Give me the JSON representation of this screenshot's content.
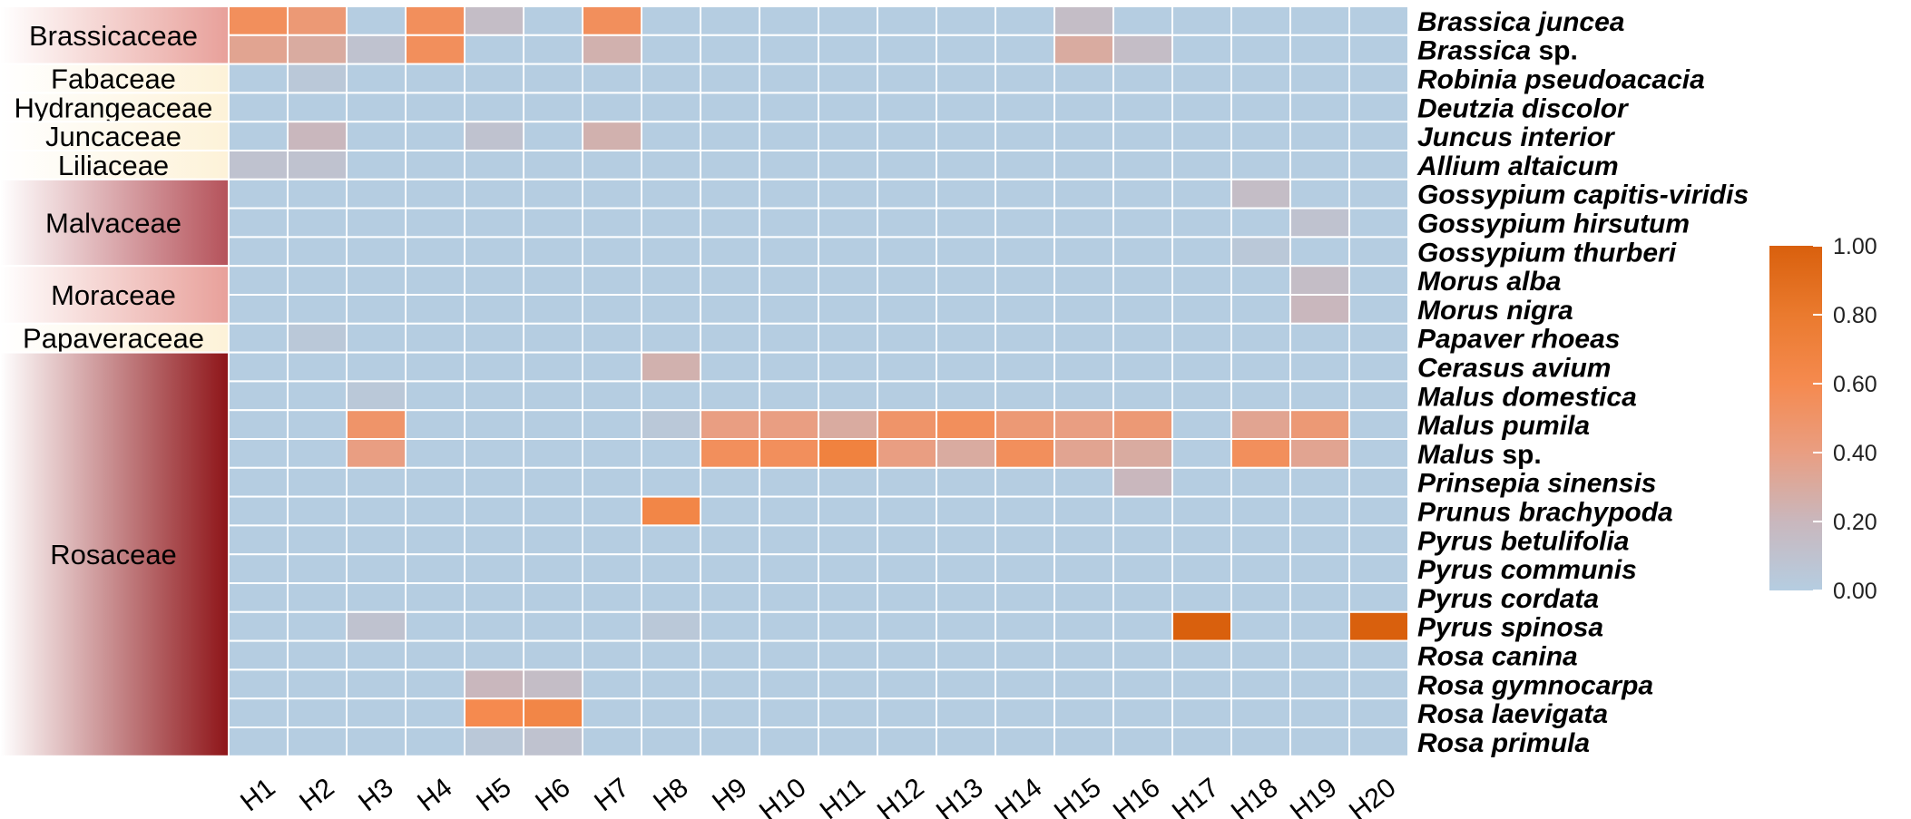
{
  "chart_data": {
    "type": "heatmap",
    "title": "",
    "xlabel": "",
    "ylabel": "",
    "x_categories": [
      "H1",
      "H2",
      "H3",
      "H4",
      "H5",
      "H6",
      "H7",
      "H8",
      "H9",
      "H10",
      "H11",
      "H12",
      "H13",
      "H14",
      "H15",
      "H16",
      "H17",
      "H18",
      "H19",
      "H20"
    ],
    "y_categories": [
      {
        "genus": "Brassica",
        "epithet": "juncea"
      },
      {
        "genus": "Brassica",
        "epithet": "sp."
      },
      {
        "genus": "Robinia",
        "epithet": "pseudoacacia"
      },
      {
        "genus": "Deutzia",
        "epithet": "discolor"
      },
      {
        "genus": "Juncus",
        "epithet": "interior"
      },
      {
        "genus": "Allium",
        "epithet": "altaicum"
      },
      {
        "genus": "Gossypium",
        "epithet": "capitis-viridis"
      },
      {
        "genus": "Gossypium",
        "epithet": "hirsutum"
      },
      {
        "genus": "Gossypium",
        "epithet": "thurberi"
      },
      {
        "genus": "Morus",
        "epithet": "alba"
      },
      {
        "genus": "Morus",
        "epithet": "nigra"
      },
      {
        "genus": "Papaver",
        "epithet": "rhoeas"
      },
      {
        "genus": "Cerasus",
        "epithet": "avium"
      },
      {
        "genus": "Malus",
        "epithet": "domestica"
      },
      {
        "genus": "Malus",
        "epithet": "pumila"
      },
      {
        "genus": "Malus",
        "epithet": "sp."
      },
      {
        "genus": "Prinsepia",
        "epithet": "sinensis"
      },
      {
        "genus": "Prunus",
        "epithet": "brachypoda"
      },
      {
        "genus": "Pyrus",
        "epithet": "betulifolia"
      },
      {
        "genus": "Pyrus",
        "epithet": "communis"
      },
      {
        "genus": "Pyrus",
        "epithet": "cordata"
      },
      {
        "genus": "Pyrus",
        "epithet": "spinosa"
      },
      {
        "genus": "Rosa",
        "epithet": "canina"
      },
      {
        "genus": "Rosa",
        "epithet": "gymnocarpa"
      },
      {
        "genus": "Rosa",
        "epithet": "laevigata"
      },
      {
        "genus": "Rosa",
        "epithet": "primula"
      }
    ],
    "families": [
      {
        "name": "Brassicaceae",
        "start": 0,
        "count": 2,
        "color": "#e8a09a"
      },
      {
        "name": "Fabaceae",
        "start": 2,
        "count": 1,
        "color": "#fdf2d8"
      },
      {
        "name": "Hydrangeaceae",
        "start": 3,
        "count": 1,
        "color": "#fdf2d8"
      },
      {
        "name": "Juncaceae",
        "start": 4,
        "count": 1,
        "color": "#fdf2d8"
      },
      {
        "name": "Liliaceae",
        "start": 5,
        "count": 1,
        "color": "#fdf2d8"
      },
      {
        "name": "Malvaceae",
        "start": 6,
        "count": 3,
        "color": "#b5525a"
      },
      {
        "name": "Moraceae",
        "start": 9,
        "count": 2,
        "color": "#e8a09a"
      },
      {
        "name": "Papaveraceae",
        "start": 11,
        "count": 1,
        "color": "#fdf2d8"
      },
      {
        "name": "Rosaceae",
        "start": 12,
        "count": 14,
        "color": "#8e1418"
      }
    ],
    "values": [
      [
        0.55,
        0.45,
        0,
        0.55,
        0.15,
        0,
        0.55,
        0,
        0,
        0,
        0,
        0,
        0,
        0,
        0.15,
        0,
        0,
        0,
        0,
        0
      ],
      [
        0.35,
        0.3,
        0.1,
        0.55,
        0,
        0,
        0.25,
        0,
        0,
        0,
        0,
        0,
        0,
        0,
        0.3,
        0.15,
        0,
        0,
        0,
        0
      ],
      [
        0,
        0.05,
        0,
        0,
        0,
        0,
        0,
        0,
        0,
        0,
        0,
        0,
        0,
        0,
        0,
        0,
        0,
        0,
        0,
        0
      ],
      [
        0,
        0,
        0,
        0,
        0,
        0,
        0,
        0,
        0,
        0,
        0,
        0,
        0,
        0,
        0,
        0,
        0,
        0,
        0,
        0
      ],
      [
        0,
        0.2,
        0,
        0,
        0.1,
        0,
        0.25,
        0,
        0,
        0,
        0,
        0,
        0,
        0,
        0,
        0,
        0,
        0,
        0,
        0
      ],
      [
        0.1,
        0.1,
        0,
        0,
        0,
        0,
        0,
        0,
        0,
        0,
        0,
        0,
        0,
        0,
        0,
        0,
        0,
        0,
        0,
        0
      ],
      [
        0,
        0,
        0,
        0,
        0,
        0,
        0,
        0,
        0,
        0,
        0,
        0,
        0,
        0,
        0,
        0,
        0,
        0.15,
        0,
        0
      ],
      [
        0,
        0,
        0,
        0,
        0,
        0,
        0,
        0,
        0,
        0,
        0,
        0,
        0,
        0,
        0,
        0,
        0,
        0,
        0.1,
        0
      ],
      [
        0,
        0,
        0,
        0,
        0,
        0,
        0,
        0,
        0,
        0,
        0,
        0,
        0,
        0,
        0,
        0,
        0,
        0.05,
        0,
        0
      ],
      [
        0,
        0,
        0,
        0,
        0,
        0,
        0,
        0,
        0,
        0,
        0,
        0,
        0,
        0,
        0,
        0,
        0,
        0,
        0.15,
        0
      ],
      [
        0,
        0,
        0,
        0,
        0,
        0,
        0,
        0,
        0,
        0,
        0,
        0,
        0,
        0,
        0,
        0,
        0,
        0,
        0.2,
        0
      ],
      [
        0,
        0.05,
        0,
        0,
        0,
        0,
        0,
        0,
        0,
        0,
        0,
        0,
        0,
        0,
        0,
        0,
        0,
        0,
        0,
        0
      ],
      [
        0,
        0,
        0,
        0,
        0,
        0,
        0,
        0.25,
        0,
        0,
        0,
        0,
        0,
        0,
        0,
        0,
        0,
        0,
        0,
        0
      ],
      [
        0,
        0,
        0.05,
        0,
        0,
        0,
        0,
        0,
        0,
        0,
        0,
        0,
        0,
        0,
        0,
        0,
        0,
        0,
        0,
        0
      ],
      [
        0,
        0,
        0.5,
        0,
        0,
        0,
        0,
        0.05,
        0.4,
        0.4,
        0.3,
        0.5,
        0.55,
        0.45,
        0.4,
        0.45,
        0,
        0.35,
        0.45,
        0
      ],
      [
        0,
        0,
        0.4,
        0,
        0,
        0,
        0,
        0,
        0.55,
        0.55,
        0.7,
        0.4,
        0.3,
        0.55,
        0.35,
        0.3,
        0,
        0.55,
        0.35,
        0
      ],
      [
        0,
        0,
        0,
        0,
        0,
        0,
        0,
        0,
        0,
        0,
        0,
        0,
        0,
        0,
        0,
        0.2,
        0,
        0,
        0,
        0
      ],
      [
        0,
        0,
        0,
        0,
        0,
        0,
        0,
        0.65,
        0,
        0,
        0,
        0,
        0,
        0,
        0,
        0,
        0,
        0,
        0,
        0
      ],
      [
        0,
        0,
        0,
        0,
        0,
        0,
        0,
        0,
        0,
        0,
        0,
        0,
        0,
        0,
        0,
        0,
        0,
        0,
        0,
        0
      ],
      [
        0,
        0,
        0,
        0,
        0,
        0,
        0,
        0,
        0,
        0,
        0,
        0,
        0,
        0,
        0,
        0,
        0,
        0,
        0,
        0
      ],
      [
        0,
        0,
        0,
        0,
        0,
        0,
        0,
        0,
        0,
        0,
        0,
        0,
        0,
        0,
        0,
        0,
        0,
        0,
        0,
        0
      ],
      [
        0,
        0,
        0.1,
        0,
        0,
        0,
        0,
        0.05,
        0,
        0,
        0,
        0,
        0,
        0,
        0,
        0,
        1.0,
        0,
        0,
        1.0
      ],
      [
        0,
        0,
        0,
        0,
        0,
        0,
        0,
        0,
        0,
        0,
        0,
        0,
        0,
        0,
        0,
        0,
        0,
        0,
        0,
        0
      ],
      [
        0,
        0,
        0,
        0,
        0.2,
        0.15,
        0,
        0,
        0,
        0,
        0,
        0,
        0,
        0,
        0,
        0,
        0,
        0,
        0,
        0
      ],
      [
        0,
        0,
        0,
        0,
        0.6,
        0.65,
        0,
        0,
        0,
        0,
        0,
        0,
        0,
        0,
        0,
        0,
        0,
        0,
        0,
        0
      ],
      [
        0,
        0,
        0,
        0,
        0.05,
        0.1,
        0,
        0,
        0,
        0,
        0,
        0,
        0,
        0,
        0,
        0,
        0,
        0,
        0,
        0
      ]
    ],
    "colorbar": {
      "min": 0,
      "max": 1,
      "ticks": [
        "0.00",
        "0.20",
        "0.40",
        "0.60",
        "0.80",
        "1.00"
      ],
      "colors": [
        "#b5cde1",
        "#c9b7bd",
        "#e99e82",
        "#f58a4f",
        "#ea7a2e",
        "#d9600d"
      ]
    },
    "grid": true,
    "legend_position": "right"
  }
}
